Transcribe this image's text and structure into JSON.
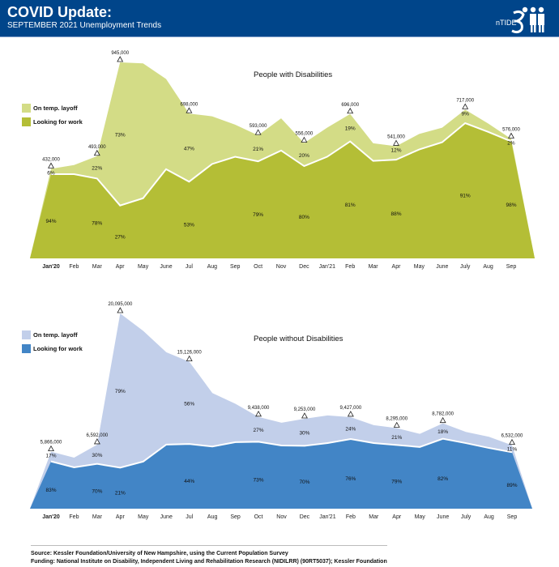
{
  "header": {
    "title": "COVID Update:",
    "subtitle": "SEPTEMBER 2021 Unemployment Trends",
    "logo_text": "nTIDE",
    "color": "#00458a"
  },
  "chart_data": [
    {
      "type": "area",
      "stacked": true,
      "title": "People with Disabilities",
      "legend_position": "top-left",
      "categories": [
        "Jan'20",
        "Feb",
        "Mar",
        "Apr",
        "May",
        "June",
        "Jul",
        "Aug",
        "Sep",
        "Oct",
        "Nov",
        "Dec",
        "Jan'21",
        "Feb",
        "Mar",
        "Apr",
        "May",
        "June",
        "July",
        "Aug",
        "Sep"
      ],
      "series": [
        {
          "name": "Looking for work",
          "color": "#b4be36",
          "values": [
            406000,
            406000,
            385000,
            255000,
            290000,
            430000,
            370000,
            455000,
            490000,
            468000,
            520000,
            445000,
            490000,
            564000,
            470000,
            476000,
            525000,
            560000,
            652000,
            610000,
            564000
          ]
        },
        {
          "name": "On temp. layoff",
          "color": "#d3dc86",
          "values": [
            26000,
            44000,
            108000,
            690000,
            650000,
            435000,
            328000,
            230000,
            155000,
            125000,
            155000,
            111000,
            140000,
            132000,
            85000,
            65000,
            75000,
            70000,
            65000,
            40000,
            12000
          ]
        }
      ],
      "totals": [
        432000,
        450000,
        493000,
        945000,
        940000,
        865000,
        698000,
        685000,
        645000,
        593000,
        675000,
        556000,
        630000,
        696000,
        555000,
        541000,
        600000,
        630000,
        717000,
        650000,
        576000
      ],
      "annotations": [
        {
          "index": 0,
          "total": "432,000",
          "layoff_pct": "6%",
          "looking_pct": "94%"
        },
        {
          "index": 2,
          "total": "493,000",
          "layoff_pct": "22%",
          "looking_pct": "78%"
        },
        {
          "index": 3,
          "total": "945,000",
          "layoff_pct": "73%",
          "looking_pct": "27%"
        },
        {
          "index": 6,
          "total": "698,000",
          "layoff_pct": "47%",
          "looking_pct": "53%"
        },
        {
          "index": 9,
          "total": "593,000",
          "layoff_pct": "21%",
          "looking_pct": "79%"
        },
        {
          "index": 11,
          "total": "556,000",
          "layoff_pct": "20%",
          "looking_pct": "80%"
        },
        {
          "index": 13,
          "total": "696,000",
          "layoff_pct": "19%",
          "looking_pct": "81%"
        },
        {
          "index": 15,
          "total": "541,000",
          "layoff_pct": "12%",
          "looking_pct": "88%"
        },
        {
          "index": 18,
          "total": "717,000",
          "layoff_pct": "9%",
          "looking_pct": "91%"
        },
        {
          "index": 20,
          "total": "576,000",
          "layoff_pct": "2%",
          "looking_pct": "98%"
        }
      ]
    },
    {
      "type": "area",
      "stacked": true,
      "title": "People without Disabilities",
      "legend_position": "top-left",
      "categories": [
        "Jan'20",
        "Feb",
        "Mar",
        "Apr",
        "May",
        "June",
        "Jul",
        "Aug",
        "Sep",
        "Oct",
        "Nov",
        "Dec",
        "Jan'21",
        "Feb",
        "Mar",
        "Apr",
        "May",
        "June",
        "July",
        "Aug",
        "Sep"
      ],
      "series": [
        {
          "name": "Looking for work",
          "color": "#4285c6",
          "values": [
            4869000,
            4250000,
            4614000,
            4220000,
            4850000,
            6600000,
            6655000,
            6400000,
            6850000,
            6890000,
            6500000,
            6477000,
            6750000,
            7165000,
            6750000,
            6553000,
            6350000,
            7201000,
            6750000,
            6250000,
            5813000
          ]
        },
        {
          "name": "On temp. layoff",
          "color": "#c2cfea",
          "values": [
            997000,
            1000000,
            1978000,
            15875000,
            13450000,
            9500000,
            8471000,
            5500000,
            3950000,
            2548000,
            2350000,
            2776000,
            2850000,
            2262000,
            1850000,
            1742000,
            1350000,
            1581000,
            1150000,
            1150000,
            719000
          ]
        }
      ],
      "totals": [
        5866000,
        5250000,
        6592000,
        20095000,
        18300000,
        16100000,
        15126000,
        11900000,
        10800000,
        9438000,
        8850000,
        9253000,
        9600000,
        9427000,
        8600000,
        8295000,
        7700000,
        8782000,
        7900000,
        7400000,
        6532000
      ],
      "annotations": [
        {
          "index": 0,
          "total": "5,866,000",
          "layoff_pct": "17%",
          "looking_pct": "83%"
        },
        {
          "index": 2,
          "total": "6,592,000",
          "layoff_pct": "30%",
          "looking_pct": "70%"
        },
        {
          "index": 3,
          "total": "20,095,000",
          "layoff_pct": "79%",
          "looking_pct": "21%"
        },
        {
          "index": 6,
          "total": "15,126,000",
          "layoff_pct": "56%",
          "looking_pct": "44%"
        },
        {
          "index": 9,
          "total": "9,438,000",
          "layoff_pct": "27%",
          "looking_pct": "73%"
        },
        {
          "index": 11,
          "total": "9,253,000",
          "layoff_pct": "30%",
          "looking_pct": "70%"
        },
        {
          "index": 13,
          "total": "9,427,000",
          "layoff_pct": "24%",
          "looking_pct": "76%"
        },
        {
          "index": 15,
          "total": "8,295,000",
          "layoff_pct": "21%",
          "looking_pct": "79%"
        },
        {
          "index": 17,
          "total": "8,782,000",
          "layoff_pct": "18%",
          "looking_pct": "82%"
        },
        {
          "index": 20,
          "total": "6,532,000",
          "layoff_pct": "11%",
          "looking_pct": "89%"
        }
      ]
    }
  ],
  "footer": {
    "source": "Source: Kessler Foundation/University of New Hampshire, using the Current Population Survey",
    "funding": "Funding: National Institute on Disability, Independent Living and Rehabilitation Research (NIDILRR) (90RT5037); Kessler Foundation"
  }
}
